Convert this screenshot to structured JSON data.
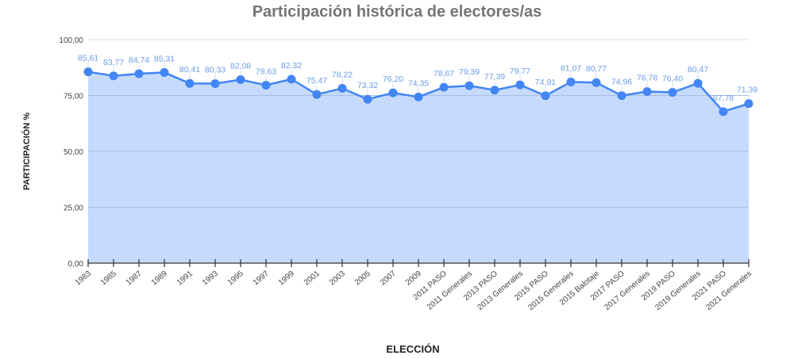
{
  "chart_data": {
    "type": "area",
    "title": "Participación histórica de electores/as",
    "xlabel": "ELECCIÓN",
    "ylabel": "PARTICIPACIÓN %",
    "ylim": [
      0,
      100
    ],
    "yticks": [
      "0,00",
      "25,00",
      "50,00",
      "75,00",
      "100,00"
    ],
    "grid": true,
    "legend": "none",
    "colors": {
      "line": "#4285f4",
      "fill": "#c6dafc",
      "label": "#6a9ce8",
      "grid": "#cccccc"
    },
    "categories": [
      "1983",
      "1985",
      "1987",
      "1989",
      "1991",
      "1993",
      "1995",
      "1997",
      "1999",
      "2001",
      "2003",
      "2005",
      "2007",
      "2009",
      "2011 PASO",
      "2011 Generales",
      "2013 PASO",
      "2013 Generales",
      "2015 PASO",
      "2015 Generales",
      "2015 Balotaje",
      "2017 PASO",
      "2017 Generales",
      "2019 PASO",
      "2019 Generales",
      "2021 PASO",
      "2021 Generales"
    ],
    "values": [
      85.61,
      83.77,
      84.74,
      85.31,
      80.41,
      80.33,
      82.08,
      79.63,
      82.32,
      75.47,
      78.22,
      73.32,
      76.2,
      74.35,
      78.67,
      79.39,
      77.39,
      79.77,
      74.91,
      81.07,
      80.77,
      74.96,
      76.78,
      76.4,
      80.47,
      67.78,
      71.39
    ],
    "value_labels": [
      "85,61",
      "83,77",
      "84,74",
      "85,31",
      "80,41",
      "80,33",
      "82,08",
      "79,63",
      "82,32",
      "75,47",
      "78,22",
      "73,32",
      "76,20",
      "74,35",
      "78,67",
      "79,39",
      "77,39",
      "79,77",
      "74,91",
      "81,07",
      "80,77",
      "74,96",
      "76,78",
      "76,40",
      "80,47",
      "67,78",
      "71,39"
    ]
  }
}
